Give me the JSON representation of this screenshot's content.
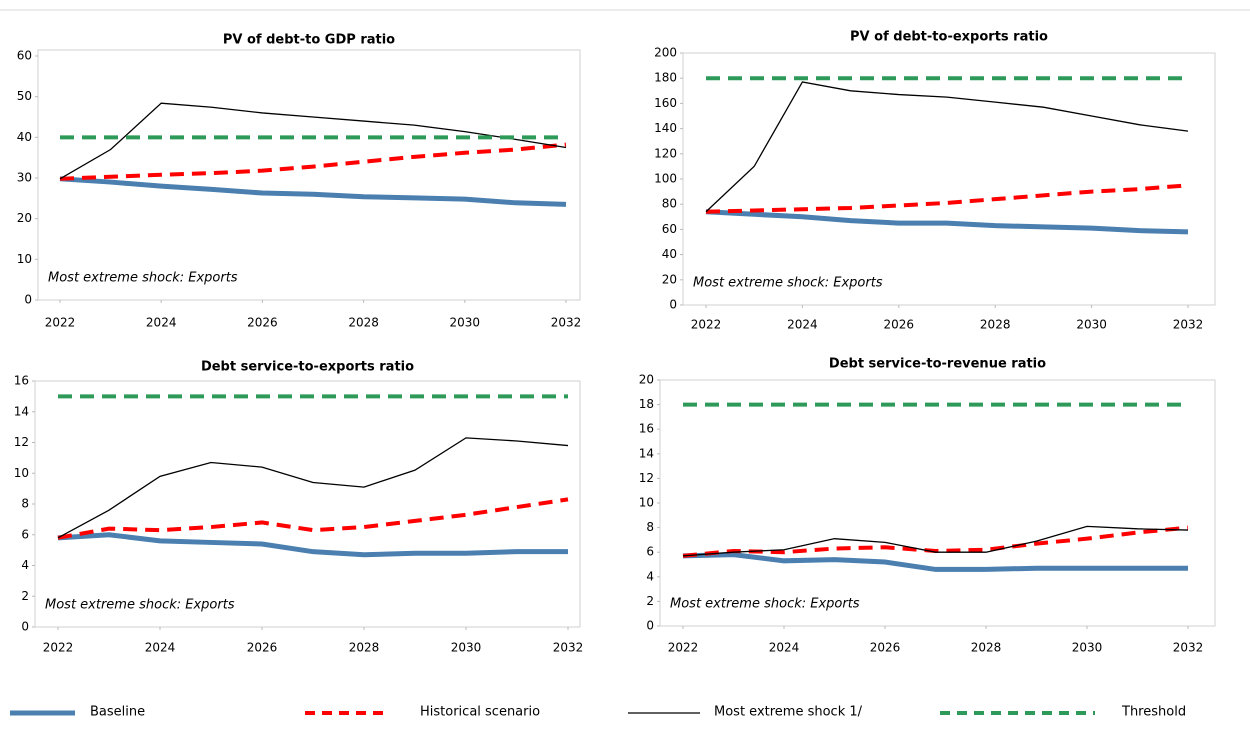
{
  "chart_data": [
    {
      "type": "line",
      "title": "PV of debt-to GDP ratio",
      "annotation": "Most extreme shock: Exports",
      "x": [
        2022,
        2023,
        2024,
        2025,
        2026,
        2027,
        2028,
        2029,
        2030,
        2031,
        2032
      ],
      "xlim": [
        2022,
        2032
      ],
      "xticks": [
        2022,
        2024,
        2026,
        2028,
        2030,
        2032
      ],
      "ylim": [
        0,
        60
      ],
      "yticks": [
        0,
        10,
        20,
        30,
        40,
        50,
        60
      ],
      "series": [
        {
          "name": "Baseline",
          "color": "#4a7fb0",
          "values": [
            29.8,
            29.0,
            28.0,
            27.2,
            26.3,
            26.0,
            25.4,
            25.1,
            24.8,
            23.9,
            23.5
          ]
        },
        {
          "name": "Historical scenario",
          "color": "#ff0000",
          "dashed": true,
          "values": [
            29.8,
            30.3,
            30.8,
            31.2,
            31.8,
            32.8,
            34.0,
            35.2,
            36.2,
            37.0,
            38.2
          ]
        },
        {
          "name": "Most extreme shock 1/",
          "color": "#000000",
          "values": [
            29.8,
            37.0,
            48.4,
            47.4,
            46.0,
            45.0,
            44.0,
            43.0,
            41.4,
            39.5,
            37.5
          ]
        },
        {
          "name": "Threshold",
          "color": "#2e9a5a",
          "dashed": true,
          "values": [
            40,
            40,
            40,
            40,
            40,
            40,
            40,
            40,
            40,
            40,
            40
          ]
        }
      ]
    },
    {
      "type": "line",
      "title": "PV of debt-to-exports ratio",
      "annotation": "Most extreme shock: Exports",
      "x": [
        2022,
        2023,
        2024,
        2025,
        2026,
        2027,
        2028,
        2029,
        2030,
        2031,
        2032
      ],
      "xlim": [
        2022,
        2032
      ],
      "xticks": [
        2022,
        2024,
        2026,
        2028,
        2030,
        2032
      ],
      "ylim": [
        0,
        200
      ],
      "yticks": [
        0,
        20,
        40,
        60,
        80,
        100,
        120,
        140,
        160,
        180,
        200
      ],
      "series": [
        {
          "name": "Baseline",
          "color": "#4a7fb0",
          "values": [
            74,
            72,
            70,
            67,
            65,
            65,
            63,
            62,
            61,
            59,
            58
          ]
        },
        {
          "name": "Historical scenario",
          "color": "#ff0000",
          "dashed": true,
          "values": [
            74,
            75,
            76,
            77,
            79,
            81,
            84,
            87,
            90,
            92,
            95
          ]
        },
        {
          "name": "Most extreme shock 1/",
          "color": "#000000",
          "values": [
            74,
            110,
            177,
            170,
            167,
            165,
            161,
            157,
            150,
            143,
            138
          ]
        },
        {
          "name": "Threshold",
          "color": "#2e9a5a",
          "dashed": true,
          "values": [
            180,
            180,
            180,
            180,
            180,
            180,
            180,
            180,
            180,
            180,
            180
          ]
        }
      ]
    },
    {
      "type": "line",
      "title": "Debt service-to-exports ratio",
      "annotation": "Most extreme shock: Exports",
      "x": [
        2022,
        2023,
        2024,
        2025,
        2026,
        2027,
        2028,
        2029,
        2030,
        2031,
        2032
      ],
      "xlim": [
        2022,
        2032
      ],
      "xticks": [
        2022,
        2024,
        2026,
        2028,
        2030,
        2032
      ],
      "ylim": [
        0,
        16
      ],
      "yticks": [
        0,
        2,
        4,
        6,
        8,
        10,
        12,
        14,
        16
      ],
      "series": [
        {
          "name": "Baseline",
          "color": "#4a7fb0",
          "values": [
            5.8,
            6.0,
            5.6,
            5.5,
            5.4,
            4.9,
            4.7,
            4.8,
            4.8,
            4.9,
            4.9
          ]
        },
        {
          "name": "Historical scenario",
          "color": "#ff0000",
          "dashed": true,
          "values": [
            5.8,
            6.4,
            6.3,
            6.5,
            6.8,
            6.3,
            6.5,
            6.9,
            7.3,
            7.8,
            8.3
          ]
        },
        {
          "name": "Most extreme shock 1/",
          "color": "#000000",
          "values": [
            5.8,
            7.6,
            9.8,
            10.7,
            10.4,
            9.4,
            9.1,
            10.2,
            12.3,
            12.1,
            11.8
          ]
        },
        {
          "name": "Threshold",
          "color": "#2e9a5a",
          "dashed": true,
          "values": [
            15,
            15,
            15,
            15,
            15,
            15,
            15,
            15,
            15,
            15,
            15
          ]
        }
      ]
    },
    {
      "type": "line",
      "title": "Debt service-to-revenue ratio",
      "annotation": "Most extreme shock: Exports",
      "x": [
        2022,
        2023,
        2024,
        2025,
        2026,
        2027,
        2028,
        2029,
        2030,
        2031,
        2032
      ],
      "xlim": [
        2022,
        2032
      ],
      "xticks": [
        2022,
        2024,
        2026,
        2028,
        2030,
        2032
      ],
      "ylim": [
        0,
        20
      ],
      "yticks": [
        0,
        2,
        4,
        6,
        8,
        10,
        12,
        14,
        16,
        18,
        20
      ],
      "series": [
        {
          "name": "Baseline",
          "color": "#4a7fb0",
          "values": [
            5.7,
            5.8,
            5.3,
            5.4,
            5.2,
            4.6,
            4.6,
            4.7,
            4.7,
            4.7,
            4.7
          ]
        },
        {
          "name": "Historical scenario",
          "color": "#ff0000",
          "dashed": true,
          "values": [
            5.7,
            6.1,
            6.0,
            6.3,
            6.4,
            6.1,
            6.2,
            6.7,
            7.1,
            7.6,
            8.0
          ]
        },
        {
          "name": "Most extreme shock 1/",
          "color": "#000000",
          "values": [
            5.7,
            6.0,
            6.2,
            7.1,
            6.8,
            6.0,
            6.0,
            6.9,
            8.1,
            7.9,
            7.8
          ]
        },
        {
          "name": "Threshold",
          "color": "#2e9a5a",
          "dashed": true,
          "values": [
            18,
            18,
            18,
            18,
            18,
            18,
            18,
            18,
            18,
            18,
            18
          ]
        }
      ]
    }
  ]
}
